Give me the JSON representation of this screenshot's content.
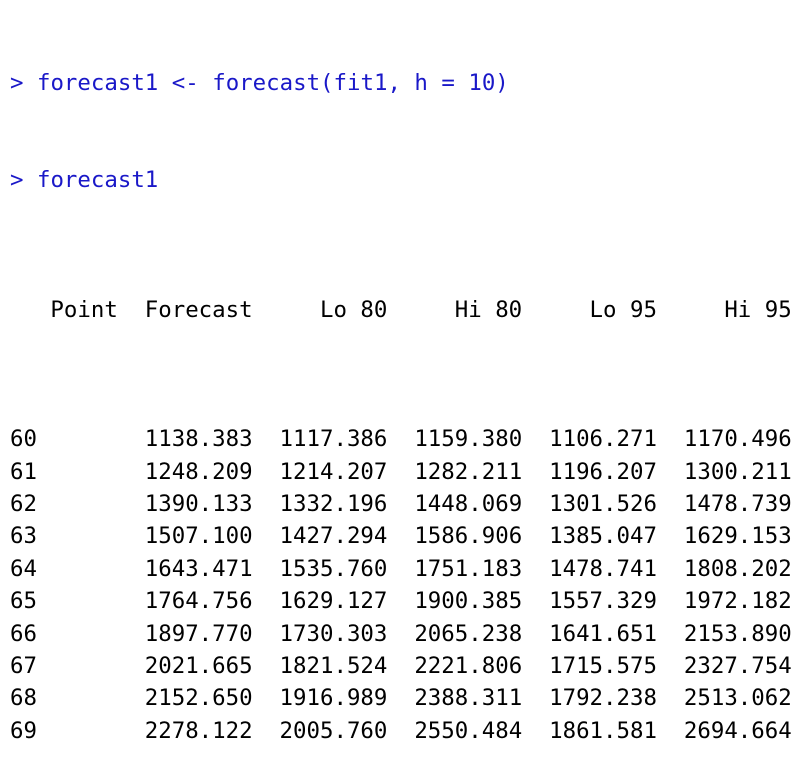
{
  "console": {
    "commands": [
      {
        "prompt": ">",
        "text": "forecast1 <- forecast(fit1, h = 10)"
      },
      {
        "prompt": ">",
        "text": "forecast1"
      }
    ],
    "table": {
      "columns": [
        "Point",
        "Forecast",
        "Lo 80",
        "Hi 80",
        "Lo 95",
        "Hi 95"
      ],
      "rows": [
        {
          "point": "60",
          "cells": [
            "1138.383",
            "1117.386",
            "1159.380",
            "1106.271",
            "1170.496"
          ]
        },
        {
          "point": "61",
          "cells": [
            "1248.209",
            "1214.207",
            "1282.211",
            "1196.207",
            "1300.211"
          ]
        },
        {
          "point": "62",
          "cells": [
            "1390.133",
            "1332.196",
            "1448.069",
            "1301.526",
            "1478.739"
          ]
        },
        {
          "point": "63",
          "cells": [
            "1507.100",
            "1427.294",
            "1586.906",
            "1385.047",
            "1629.153"
          ]
        },
        {
          "point": "64",
          "cells": [
            "1643.471",
            "1535.760",
            "1751.183",
            "1478.741",
            "1808.202"
          ]
        },
        {
          "point": "65",
          "cells": [
            "1764.756",
            "1629.127",
            "1900.385",
            "1557.329",
            "1972.182"
          ]
        },
        {
          "point": "66",
          "cells": [
            "1897.770",
            "1730.303",
            "2065.238",
            "1641.651",
            "2153.890"
          ]
        },
        {
          "point": "67",
          "cells": [
            "2021.665",
            "1821.524",
            "2221.806",
            "1715.575",
            "2327.754"
          ]
        },
        {
          "point": "68",
          "cells": [
            "2152.650",
            "1916.989",
            "2388.311",
            "1792.238",
            "2513.062"
          ]
        },
        {
          "point": "69",
          "cells": [
            "2278.122",
            "2005.760",
            "2550.484",
            "1861.581",
            "2694.664"
          ]
        }
      ]
    },
    "colors": {
      "command": "#1a18c8",
      "output": "#000000",
      "background": "#ffffff"
    }
  }
}
